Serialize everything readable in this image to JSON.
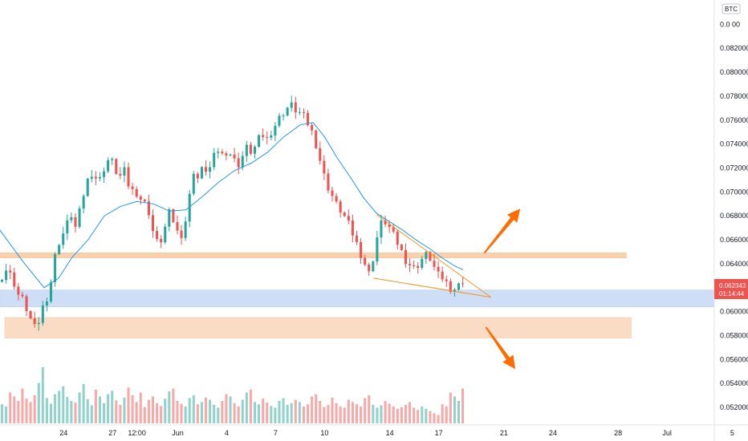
{
  "symbol_badge": "BTC",
  "price_label": {
    "price": "0.062343",
    "countdown": "01:14:44",
    "color": "#ef5350"
  },
  "chart_data": {
    "type": "candlestick",
    "title": "",
    "y_axis": {
      "side": "right",
      "range": [
        0.0512,
        0.0855
      ],
      "ticks": [
        {
          "value": 0.052,
          "label": "0.052000"
        },
        {
          "value": 0.054,
          "label": "0.054000"
        },
        {
          "value": 0.056,
          "label": "0.056000"
        },
        {
          "value": 0.058,
          "label": "0.058000"
        },
        {
          "value": 0.06,
          "label": "0.060000"
        },
        {
          "value": 0.064,
          "label": "0.064000"
        },
        {
          "value": 0.066,
          "label": "0.066000"
        },
        {
          "value": 0.068,
          "label": "0.068000"
        },
        {
          "value": 0.07,
          "label": "0.070000"
        },
        {
          "value": 0.072,
          "label": "0.072000"
        },
        {
          "value": 0.074,
          "label": "0.074000"
        },
        {
          "value": 0.076,
          "label": "0.076000"
        },
        {
          "value": 0.078,
          "label": "0.078000"
        },
        {
          "value": 0.08,
          "label": "0.080000"
        },
        {
          "value": 0.082,
          "label": "0.082000"
        },
        {
          "value": 0.084,
          "label": "0.0 00"
        }
      ]
    },
    "x_axis": {
      "range_days": [
        -3.9,
        39.9
      ],
      "ticks": [
        {
          "day": 0,
          "label": "24"
        },
        {
          "day": 3,
          "label": "27"
        },
        {
          "day": 4.5,
          "label": "12:00"
        },
        {
          "day": 7,
          "label": "Jun"
        },
        {
          "day": 10,
          "label": "4"
        },
        {
          "day": 13,
          "label": "7"
        },
        {
          "day": 16,
          "label": "10"
        },
        {
          "day": 20,
          "label": "14"
        },
        {
          "day": 23,
          "label": "17"
        },
        {
          "day": 27,
          "label": "21"
        },
        {
          "day": 30,
          "label": "24"
        },
        {
          "day": 34,
          "label": "28"
        },
        {
          "day": 37,
          "label": "Jul"
        },
        {
          "day": 41,
          "label": "5"
        }
      ]
    },
    "price_path": [
      [
        -3.9,
        0.0625
      ],
      [
        -3.4,
        0.0635
      ],
      [
        -3.0,
        0.0628
      ],
      [
        -2.7,
        0.0615
      ],
      [
        -2.4,
        0.061
      ],
      [
        -2.0,
        0.0598
      ],
      [
        -1.7,
        0.0585
      ],
      [
        -1.4,
        0.0592
      ],
      [
        -1.1,
        0.0606
      ],
      [
        -0.9,
        0.0612
      ],
      [
        -0.6,
        0.0628
      ],
      [
        -0.3,
        0.0655
      ],
      [
        0.0,
        0.0662
      ],
      [
        0.3,
        0.0672
      ],
      [
        0.6,
        0.0681
      ],
      [
        0.9,
        0.0668
      ],
      [
        1.2,
        0.069
      ],
      [
        1.5,
        0.0706
      ],
      [
        1.8,
        0.0717
      ],
      [
        2.1,
        0.0712
      ],
      [
        2.4,
        0.071
      ],
      [
        2.7,
        0.0725
      ],
      [
        3.0,
        0.0728
      ],
      [
        3.3,
        0.0718
      ],
      [
        3.6,
        0.0713
      ],
      [
        3.9,
        0.0718
      ],
      [
        4.2,
        0.07
      ],
      [
        4.5,
        0.0702
      ],
      [
        4.8,
        0.0695
      ],
      [
        5.1,
        0.069
      ],
      [
        5.4,
        0.0682
      ],
      [
        5.7,
        0.066
      ],
      [
        6.0,
        0.0656
      ],
      [
        6.3,
        0.0668
      ],
      [
        6.6,
        0.0682
      ],
      [
        6.9,
        0.0675
      ],
      [
        7.2,
        0.0662
      ],
      [
        7.5,
        0.0668
      ],
      [
        7.8,
        0.0692
      ],
      [
        8.1,
        0.0718
      ],
      [
        8.4,
        0.071
      ],
      [
        8.7,
        0.0722
      ],
      [
        9.0,
        0.0716
      ],
      [
        9.3,
        0.0728
      ],
      [
        9.6,
        0.0735
      ],
      [
        9.9,
        0.073
      ],
      [
        10.2,
        0.0736
      ],
      [
        10.5,
        0.0728
      ],
      [
        10.8,
        0.0722
      ],
      [
        11.1,
        0.073
      ],
      [
        11.4,
        0.0738
      ],
      [
        11.7,
        0.0732
      ],
      [
        12.0,
        0.0742
      ],
      [
        12.3,
        0.0748
      ],
      [
        12.6,
        0.0744
      ],
      [
        12.9,
        0.0752
      ],
      [
        13.2,
        0.0758
      ],
      [
        13.5,
        0.0765
      ],
      [
        13.8,
        0.077
      ],
      [
        14.1,
        0.0772
      ],
      [
        14.4,
        0.0768
      ],
      [
        14.7,
        0.0765
      ],
      [
        15.0,
        0.076
      ],
      [
        15.3,
        0.0752
      ],
      [
        15.6,
        0.074
      ],
      [
        15.9,
        0.0724
      ],
      [
        16.2,
        0.0708
      ],
      [
        16.5,
        0.07
      ],
      [
        16.8,
        0.069
      ],
      [
        17.1,
        0.0685
      ],
      [
        17.4,
        0.0678
      ],
      [
        17.7,
        0.067
      ],
      [
        18.0,
        0.066
      ],
      [
        18.3,
        0.065
      ],
      [
        18.6,
        0.064
      ],
      [
        18.9,
        0.063
      ],
      [
        19.2,
        0.0652
      ],
      [
        19.5,
        0.0672
      ],
      [
        19.8,
        0.0676
      ],
      [
        20.1,
        0.067
      ],
      [
        20.4,
        0.0662
      ],
      [
        20.7,
        0.0655
      ],
      [
        21.0,
        0.0645
      ],
      [
        21.3,
        0.064
      ],
      [
        21.6,
        0.0636
      ],
      [
        21.9,
        0.064
      ],
      [
        22.2,
        0.0646
      ],
      [
        22.5,
        0.0648
      ],
      [
        22.8,
        0.0638
      ],
      [
        23.1,
        0.063
      ],
      [
        23.4,
        0.0628
      ],
      [
        23.7,
        0.0622
      ],
      [
        24.0,
        0.0618
      ],
      [
        24.3,
        0.0621
      ],
      [
        24.5,
        0.0623
      ]
    ],
    "moving_average": [
      [
        -3.9,
        0.0668
      ],
      [
        -2.5,
        0.0642
      ],
      [
        -1.2,
        0.062
      ],
      [
        -0.3,
        0.0628
      ],
      [
        0.5,
        0.0645
      ],
      [
        1.5,
        0.066
      ],
      [
        2.5,
        0.068
      ],
      [
        3.5,
        0.0688
      ],
      [
        4.5,
        0.0692
      ],
      [
        5.5,
        0.069
      ],
      [
        6.5,
        0.0684
      ],
      [
        7.5,
        0.0685
      ],
      [
        8.5,
        0.0696
      ],
      [
        9.5,
        0.0708
      ],
      [
        10.5,
        0.0718
      ],
      [
        11.5,
        0.0724
      ],
      [
        12.5,
        0.0733
      ],
      [
        13.5,
        0.0746
      ],
      [
        14.5,
        0.0756
      ],
      [
        15.3,
        0.0758
      ],
      [
        16.0,
        0.0746
      ],
      [
        16.8,
        0.0728
      ],
      [
        17.6,
        0.0712
      ],
      [
        18.4,
        0.0695
      ],
      [
        19.2,
        0.0682
      ],
      [
        20.0,
        0.0675
      ],
      [
        20.8,
        0.0668
      ],
      [
        21.6,
        0.066
      ],
      [
        22.4,
        0.0653
      ],
      [
        23.2,
        0.0645
      ],
      [
        24.0,
        0.0638
      ],
      [
        24.5,
        0.0635
      ]
    ],
    "volume": {
      "max": 100,
      "values": [
        34,
        30,
        55,
        48,
        40,
        62,
        44,
        38,
        50,
        72,
        100,
        45,
        35,
        52,
        58,
        66,
        47,
        40,
        37,
        55,
        70,
        43,
        32,
        60,
        48,
        36,
        52,
        58,
        41,
        33,
        46,
        64,
        50,
        38,
        55,
        29,
        42,
        48,
        36,
        31,
        44,
        57,
        62,
        40,
        35,
        30,
        45,
        50,
        34,
        38,
        46,
        42,
        33,
        28,
        40,
        52,
        48,
        36,
        30,
        42,
        55,
        60,
        38,
        34,
        44,
        37,
        31,
        28,
        40,
        45,
        33,
        36,
        42,
        38,
        30,
        34,
        48,
        52,
        40,
        29,
        33,
        46,
        36,
        30,
        28,
        42,
        38,
        34,
        30,
        45,
        50,
        33,
        28,
        32,
        40,
        35,
        30,
        26,
        29,
        33,
        38,
        28,
        24,
        30,
        26,
        22,
        18,
        15
      ]
    },
    "zones": [
      {
        "from": 0.0645,
        "to": 0.0649,
        "x_from": -3.9,
        "x_to": 34.5,
        "color": "#f9c9a0"
      },
      {
        "from": 0.0604,
        "to": 0.0618,
        "x_from": -3.9,
        "x_to": 39.9,
        "color": "#c7d8f6"
      },
      {
        "from": 0.0578,
        "to": 0.0595,
        "x_from": -3.6,
        "x_to": 34.8,
        "color": "#f9d5b8"
      }
    ],
    "wedge": [
      [
        [
          19.2,
          0.0681
        ],
        [
          26.2,
          0.0612
        ]
      ],
      [
        [
          19.0,
          0.0628
        ],
        [
          26.2,
          0.0612
        ]
      ]
    ],
    "arrows": [
      {
        "from": [
          25.8,
          0.0649
        ],
        "to": [
          28.0,
          0.0686
        ],
        "direction": "up"
      },
      {
        "from": [
          25.9,
          0.0587
        ],
        "to": [
          27.7,
          0.0552
        ],
        "direction": "down"
      }
    ],
    "last_price": 0.062343,
    "colors": {
      "up": "#26a69a",
      "down": "#ef5350",
      "ma": "#2196f3",
      "wedge": "#f7931a",
      "arrow": "#ff6d00"
    }
  }
}
